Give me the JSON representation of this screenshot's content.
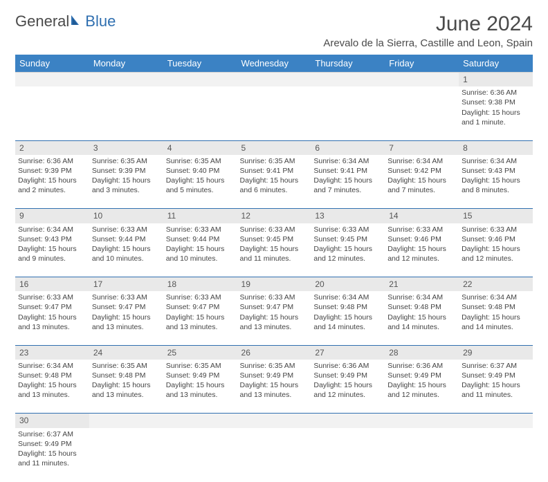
{
  "logo": {
    "part1": "General",
    "part2": "Blue"
  },
  "title": "June 2024",
  "location": "Arevalo de la Sierra, Castille and Leon, Spain",
  "colors": {
    "header_bg": "#3b82c4",
    "header_text": "#ffffff",
    "divider": "#2f6fb0",
    "daynum_bg": "#e9e9e9",
    "text": "#444444",
    "logo_accent": "#2f6fb0"
  },
  "weekdays": [
    "Sunday",
    "Monday",
    "Tuesday",
    "Wednesday",
    "Thursday",
    "Friday",
    "Saturday"
  ],
  "weeks": [
    [
      null,
      null,
      null,
      null,
      null,
      null,
      {
        "n": "1",
        "sr": "Sunrise: 6:36 AM",
        "ss": "Sunset: 9:38 PM",
        "dl": "Daylight: 15 hours and 1 minute."
      }
    ],
    [
      {
        "n": "2",
        "sr": "Sunrise: 6:36 AM",
        "ss": "Sunset: 9:39 PM",
        "dl": "Daylight: 15 hours and 2 minutes."
      },
      {
        "n": "3",
        "sr": "Sunrise: 6:35 AM",
        "ss": "Sunset: 9:39 PM",
        "dl": "Daylight: 15 hours and 3 minutes."
      },
      {
        "n": "4",
        "sr": "Sunrise: 6:35 AM",
        "ss": "Sunset: 9:40 PM",
        "dl": "Daylight: 15 hours and 5 minutes."
      },
      {
        "n": "5",
        "sr": "Sunrise: 6:35 AM",
        "ss": "Sunset: 9:41 PM",
        "dl": "Daylight: 15 hours and 6 minutes."
      },
      {
        "n": "6",
        "sr": "Sunrise: 6:34 AM",
        "ss": "Sunset: 9:41 PM",
        "dl": "Daylight: 15 hours and 7 minutes."
      },
      {
        "n": "7",
        "sr": "Sunrise: 6:34 AM",
        "ss": "Sunset: 9:42 PM",
        "dl": "Daylight: 15 hours and 7 minutes."
      },
      {
        "n": "8",
        "sr": "Sunrise: 6:34 AM",
        "ss": "Sunset: 9:43 PM",
        "dl": "Daylight: 15 hours and 8 minutes."
      }
    ],
    [
      {
        "n": "9",
        "sr": "Sunrise: 6:34 AM",
        "ss": "Sunset: 9:43 PM",
        "dl": "Daylight: 15 hours and 9 minutes."
      },
      {
        "n": "10",
        "sr": "Sunrise: 6:33 AM",
        "ss": "Sunset: 9:44 PM",
        "dl": "Daylight: 15 hours and 10 minutes."
      },
      {
        "n": "11",
        "sr": "Sunrise: 6:33 AM",
        "ss": "Sunset: 9:44 PM",
        "dl": "Daylight: 15 hours and 10 minutes."
      },
      {
        "n": "12",
        "sr": "Sunrise: 6:33 AM",
        "ss": "Sunset: 9:45 PM",
        "dl": "Daylight: 15 hours and 11 minutes."
      },
      {
        "n": "13",
        "sr": "Sunrise: 6:33 AM",
        "ss": "Sunset: 9:45 PM",
        "dl": "Daylight: 15 hours and 12 minutes."
      },
      {
        "n": "14",
        "sr": "Sunrise: 6:33 AM",
        "ss": "Sunset: 9:46 PM",
        "dl": "Daylight: 15 hours and 12 minutes."
      },
      {
        "n": "15",
        "sr": "Sunrise: 6:33 AM",
        "ss": "Sunset: 9:46 PM",
        "dl": "Daylight: 15 hours and 12 minutes."
      }
    ],
    [
      {
        "n": "16",
        "sr": "Sunrise: 6:33 AM",
        "ss": "Sunset: 9:47 PM",
        "dl": "Daylight: 15 hours and 13 minutes."
      },
      {
        "n": "17",
        "sr": "Sunrise: 6:33 AM",
        "ss": "Sunset: 9:47 PM",
        "dl": "Daylight: 15 hours and 13 minutes."
      },
      {
        "n": "18",
        "sr": "Sunrise: 6:33 AM",
        "ss": "Sunset: 9:47 PM",
        "dl": "Daylight: 15 hours and 13 minutes."
      },
      {
        "n": "19",
        "sr": "Sunrise: 6:33 AM",
        "ss": "Sunset: 9:47 PM",
        "dl": "Daylight: 15 hours and 13 minutes."
      },
      {
        "n": "20",
        "sr": "Sunrise: 6:34 AM",
        "ss": "Sunset: 9:48 PM",
        "dl": "Daylight: 15 hours and 14 minutes."
      },
      {
        "n": "21",
        "sr": "Sunrise: 6:34 AM",
        "ss": "Sunset: 9:48 PM",
        "dl": "Daylight: 15 hours and 14 minutes."
      },
      {
        "n": "22",
        "sr": "Sunrise: 6:34 AM",
        "ss": "Sunset: 9:48 PM",
        "dl": "Daylight: 15 hours and 14 minutes."
      }
    ],
    [
      {
        "n": "23",
        "sr": "Sunrise: 6:34 AM",
        "ss": "Sunset: 9:48 PM",
        "dl": "Daylight: 15 hours and 13 minutes."
      },
      {
        "n": "24",
        "sr": "Sunrise: 6:35 AM",
        "ss": "Sunset: 9:48 PM",
        "dl": "Daylight: 15 hours and 13 minutes."
      },
      {
        "n": "25",
        "sr": "Sunrise: 6:35 AM",
        "ss": "Sunset: 9:49 PM",
        "dl": "Daylight: 15 hours and 13 minutes."
      },
      {
        "n": "26",
        "sr": "Sunrise: 6:35 AM",
        "ss": "Sunset: 9:49 PM",
        "dl": "Daylight: 15 hours and 13 minutes."
      },
      {
        "n": "27",
        "sr": "Sunrise: 6:36 AM",
        "ss": "Sunset: 9:49 PM",
        "dl": "Daylight: 15 hours and 12 minutes."
      },
      {
        "n": "28",
        "sr": "Sunrise: 6:36 AM",
        "ss": "Sunset: 9:49 PM",
        "dl": "Daylight: 15 hours and 12 minutes."
      },
      {
        "n": "29",
        "sr": "Sunrise: 6:37 AM",
        "ss": "Sunset: 9:49 PM",
        "dl": "Daylight: 15 hours and 11 minutes."
      }
    ],
    [
      {
        "n": "30",
        "sr": "Sunrise: 6:37 AM",
        "ss": "Sunset: 9:49 PM",
        "dl": "Daylight: 15 hours and 11 minutes."
      },
      null,
      null,
      null,
      null,
      null,
      null
    ]
  ]
}
